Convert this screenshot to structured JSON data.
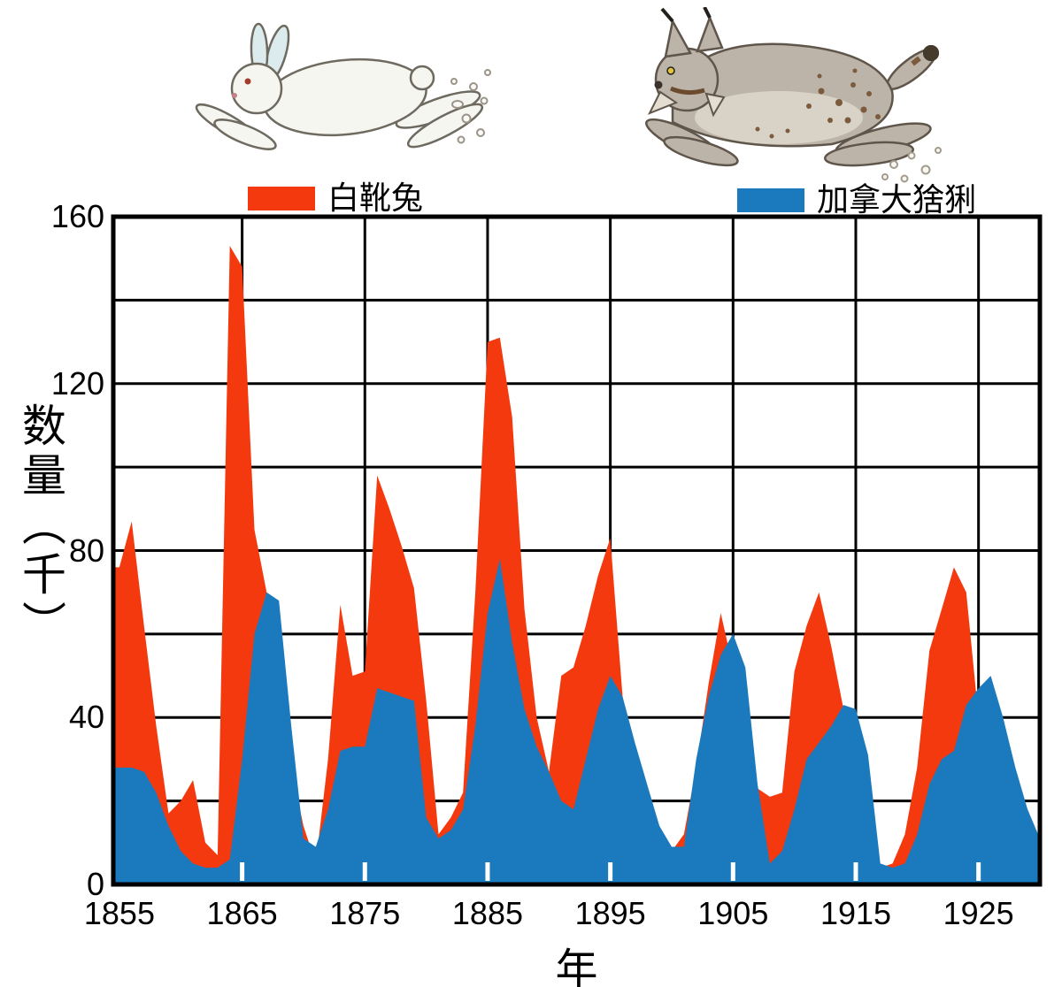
{
  "page": {
    "background": "#ffffff"
  },
  "illustrations": {
    "hare_icon": "white-hare-running-left-with-dust-puffs",
    "lynx_icon": "canada-lynx-running-left-with-dust-puffs"
  },
  "legend": [
    {
      "label": "白靴兔",
      "color": "#f5390f"
    },
    {
      "label": "加拿大猞猁",
      "color": "#1b79bd"
    }
  ],
  "axes": {
    "y_title": "数量（千）",
    "x_title": "年",
    "y_tick_labels": [
      160,
      120,
      80,
      40,
      0
    ],
    "x_tick_labels": [
      1855,
      1865,
      1875,
      1885,
      1895,
      1905,
      1915,
      1925
    ]
  },
  "chart_data": {
    "type": "area",
    "title": "",
    "xlabel": "年",
    "ylabel": "数量（千）",
    "xlim": [
      1854.5,
      1930
    ],
    "ylim": [
      0,
      160
    ],
    "grid": true,
    "y_grid_step": 20,
    "x_gridlines": [
      1865,
      1875,
      1885,
      1895,
      1905,
      1915,
      1925
    ],
    "x": [
      1855,
      1856,
      1857,
      1858,
      1859,
      1860,
      1861,
      1862,
      1863,
      1864,
      1865,
      1866,
      1867,
      1868,
      1869,
      1870,
      1871,
      1872,
      1873,
      1874,
      1875,
      1876,
      1877,
      1878,
      1879,
      1880,
      1881,
      1882,
      1883,
      1884,
      1885,
      1886,
      1887,
      1888,
      1889,
      1890,
      1891,
      1892,
      1893,
      1894,
      1895,
      1896,
      1897,
      1898,
      1899,
      1900,
      1901,
      1902,
      1903,
      1904,
      1905,
      1906,
      1907,
      1908,
      1909,
      1910,
      1911,
      1912,
      1913,
      1914,
      1915,
      1916,
      1917,
      1918,
      1919,
      1920,
      1921,
      1922,
      1923,
      1924,
      1925,
      1926,
      1927,
      1928,
      1929,
      1930
    ],
    "series": [
      {
        "name": "白靴兔",
        "color": "#f5390f",
        "values": [
          76,
          87,
          62,
          38,
          17,
          20,
          25,
          10,
          7,
          153,
          148,
          85,
          70,
          45,
          28,
          14,
          5,
          30,
          67,
          50,
          51,
          98,
          90,
          81,
          71,
          44,
          12,
          16,
          22,
          70,
          130,
          131,
          112,
          66,
          40,
          27,
          50,
          52,
          62,
          74,
          83,
          45,
          28,
          17,
          11,
          8,
          12,
          28,
          48,
          65,
          52,
          30,
          23,
          21,
          22,
          51,
          62,
          70,
          57,
          42,
          20,
          10,
          4,
          5,
          12,
          28,
          56,
          66,
          76,
          70,
          40,
          22,
          14,
          9,
          6,
          5
        ]
      },
      {
        "name": "加拿大猞猁",
        "color": "#1b79bd",
        "values": [
          28,
          28,
          27,
          22,
          14,
          8,
          5,
          4,
          4,
          6,
          30,
          60,
          70,
          68,
          38,
          11,
          9,
          18,
          32,
          33,
          33,
          47,
          46,
          45,
          44,
          16,
          11,
          13,
          18,
          38,
          65,
          78,
          58,
          42,
          33,
          27,
          20,
          18,
          30,
          42,
          50,
          45,
          34,
          24,
          14,
          9,
          9,
          30,
          45,
          55,
          60,
          52,
          24,
          5,
          8,
          18,
          30,
          34,
          38,
          43,
          42,
          31,
          5,
          4,
          5,
          12,
          24,
          30,
          32,
          43,
          47,
          50,
          40,
          28,
          18,
          11
        ]
      }
    ],
    "legend_position": "top"
  }
}
